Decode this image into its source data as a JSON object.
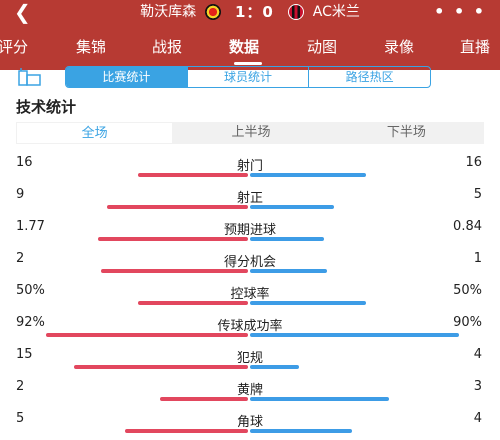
{
  "header": {
    "back_icon": "chevron-left-icon",
    "home_team": "勒沃库森",
    "score": "1：0",
    "away_team": "AC米兰",
    "more_label": "• • •",
    "bg_color": "#b73a33"
  },
  "nav_tabs": [
    {
      "label": "评分"
    },
    {
      "label": "集锦"
    },
    {
      "label": "战报"
    },
    {
      "label": "数据"
    },
    {
      "label": "动图"
    },
    {
      "label": "录像"
    },
    {
      "label": "直播"
    }
  ],
  "active_tab": "数据",
  "segment": {
    "items": [
      "比赛统计",
      "球员统计",
      "路径热区"
    ],
    "active": "比赛统计",
    "accent_color": "#3aa3e3"
  },
  "section_title": "技术统计",
  "halves": {
    "items": [
      "全场",
      "上半场",
      "下半场"
    ],
    "active": "全场"
  },
  "stats": [
    {
      "label": "射门",
      "home": "16",
      "away": "16",
      "home_ratio": 0.5,
      "away_ratio": 0.5
    },
    {
      "label": "射正",
      "home": "9",
      "away": "5",
      "home_ratio": 0.64,
      "away_ratio": 0.36
    },
    {
      "label": "预期进球",
      "home": "1.77",
      "away": "0.84",
      "home_ratio": 0.68,
      "away_ratio": 0.32
    },
    {
      "label": "得分机会",
      "home": "2",
      "away": "1",
      "home_ratio": 0.67,
      "away_ratio": 0.33
    },
    {
      "label": "控球率",
      "home": "50%",
      "away": "50%",
      "home_ratio": 0.5,
      "away_ratio": 0.5
    },
    {
      "label": "传球成功率",
      "home": "92%",
      "away": "90%",
      "home_ratio": 0.92,
      "away_ratio": 0.9
    },
    {
      "label": "犯规",
      "home": "15",
      "away": "4",
      "home_ratio": 0.79,
      "away_ratio": 0.21
    },
    {
      "label": "黄牌",
      "home": "2",
      "away": "3",
      "home_ratio": 0.4,
      "away_ratio": 0.6
    },
    {
      "label": "角球",
      "home": "5",
      "away": "4",
      "home_ratio": 0.56,
      "away_ratio": 0.44
    }
  ],
  "colors": {
    "home_bar": "#e2475e",
    "away_bar": "#3d9ce6"
  }
}
